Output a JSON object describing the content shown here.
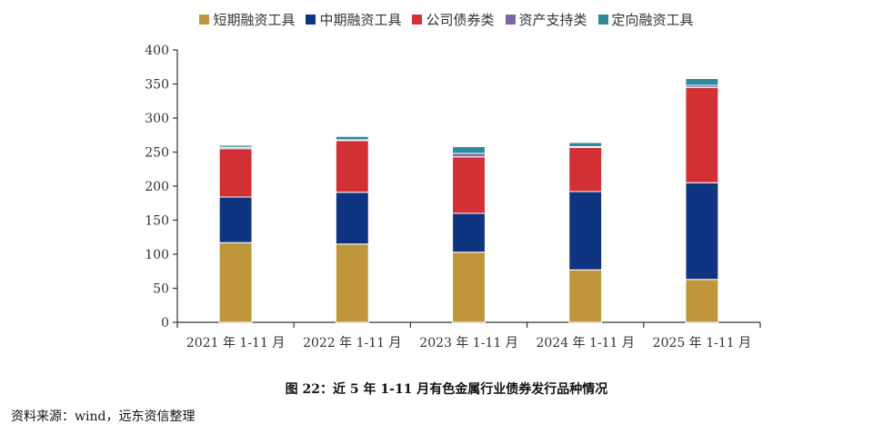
{
  "chart_data": {
    "type": "bar",
    "stacked": true,
    "categories": [
      "2021 年 1-11 月",
      "2022 年 1-11 月",
      "2023 年 1-11 月",
      "2024 年 1-11 月",
      "2025 年 1-11 月"
    ],
    "series": [
      {
        "name": "短期融资工具",
        "color": "#BF973A",
        "values": [
          117,
          115,
          103,
          77,
          63
        ]
      },
      {
        "name": "中期融资工具",
        "color": "#0F3580",
        "values": [
          67,
          76,
          57,
          115,
          142
        ]
      },
      {
        "name": "公司债券类",
        "color": "#D23034",
        "values": [
          71,
          76,
          83,
          65,
          140
        ]
      },
      {
        "name": "资产支持类",
        "color": "#7F67A6",
        "values": [
          2,
          1,
          5,
          1,
          3
        ]
      },
      {
        "name": "定向融资工具",
        "color": "#318A9C",
        "values": [
          3,
          5,
          10,
          6,
          10
        ]
      }
    ],
    "ylim": [
      0,
      400
    ],
    "yticks": [
      0,
      50,
      100,
      150,
      200,
      250,
      300,
      350,
      400
    ],
    "grid": false,
    "legend_position": "top-center"
  },
  "caption": "图 22：近 5 年 1-11 月有色金属行业债券发行品种情况",
  "source": "资料来源：wind，远东资信整理"
}
